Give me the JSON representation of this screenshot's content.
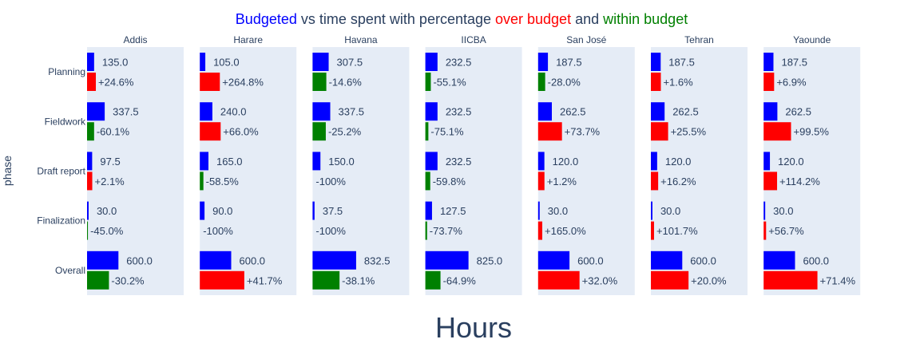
{
  "chart_data": {
    "type": "bar",
    "orientation": "horizontal",
    "title": {
      "parts": [
        {
          "text": "Budgeted",
          "color": "#0000ff"
        },
        {
          "text": " vs time spent with percentage ",
          "color": "#2a3f5f"
        },
        {
          "text": "over budget",
          "color": "#ff0000"
        },
        {
          "text": " and ",
          "color": "#2a3f5f"
        },
        {
          "text": "within budget",
          "color": "#008000"
        }
      ]
    },
    "xlabel": "Hours",
    "ylabel": "phase",
    "categories": [
      "Planning",
      "Fieldwork",
      "Draft report",
      "Finalization",
      "Overall"
    ],
    "colors": {
      "budgeted": "#0000ff",
      "over": "#ff0000",
      "within": "#008000",
      "panel_bg": "#e5ecf6"
    },
    "grid": false,
    "xlim": [
      0,
      1400
    ],
    "facets": [
      {
        "name": "Addis",
        "budget": [
          135,
          337.5,
          97.5,
          30,
          600
        ],
        "spent": [
          168.2,
          134.7,
          99.5,
          16.5,
          418.8
        ],
        "budget_labels": [
          "135.0",
          "337.5",
          "97.5",
          "30.0",
          "600.0"
        ],
        "pct_labels": [
          "+24.6%",
          "-60.1%",
          "+2.1%",
          "-45.0%",
          "-30.2%"
        ]
      },
      {
        "name": "Harare",
        "budget": [
          105,
          240,
          165,
          90,
          600
        ],
        "spent": [
          383.0,
          398.4,
          68.5,
          0,
          850.2
        ],
        "budget_labels": [
          "105.0",
          "240.0",
          "165.0",
          "90.0",
          "600.0"
        ],
        "pct_labels": [
          "+264.8%",
          "+66.0%",
          "-58.5%",
          "-100%",
          "+41.7%"
        ]
      },
      {
        "name": "Havana",
        "budget": [
          307.5,
          337.5,
          150,
          37.5,
          832.5
        ],
        "spent": [
          262.6,
          252.5,
          0,
          0,
          515.3
        ],
        "budget_labels": [
          "307.5",
          "337.5",
          "150.0",
          "37.5",
          "832.5"
        ],
        "pct_labels": [
          "-14.6%",
          "-25.2%",
          "-100%",
          "-100%",
          "-38.1%"
        ]
      },
      {
        "name": "IICBA",
        "budget": [
          232.5,
          232.5,
          232.5,
          127.5,
          825
        ],
        "spent": [
          104.4,
          57.9,
          93.5,
          33.5,
          289.6
        ],
        "budget_labels": [
          "232.5",
          "232.5",
          "232.5",
          "127.5",
          "825.0"
        ],
        "pct_labels": [
          "-55.1%",
          "-75.1%",
          "-59.8%",
          "-73.7%",
          "-64.9%"
        ]
      },
      {
        "name": "San José",
        "budget": [
          187.5,
          262.5,
          120,
          30,
          600
        ],
        "spent": [
          135.0,
          456.0,
          121.4,
          79.5,
          792.0
        ],
        "budget_labels": [
          "187.5",
          "262.5",
          "120.0",
          "30.0",
          "600.0"
        ],
        "pct_labels": [
          "-28.0%",
          "+73.7%",
          "+1.2%",
          "+165.0%",
          "+32.0%"
        ]
      },
      {
        "name": "Tehran",
        "budget": [
          187.5,
          262.5,
          120,
          30,
          600
        ],
        "spent": [
          190.5,
          329.4,
          139.4,
          60.5,
          720.0
        ],
        "budget_labels": [
          "187.5",
          "262.5",
          "120.0",
          "30.0",
          "600.0"
        ],
        "pct_labels": [
          "+1.6%",
          "+25.5%",
          "+16.2%",
          "+101.7%",
          "+20.0%"
        ]
      },
      {
        "name": "Yaounde",
        "budget": [
          187.5,
          262.5,
          120,
          30,
          600
        ],
        "spent": [
          200.4,
          523.7,
          257.0,
          47.0,
          1028.4
        ],
        "budget_labels": [
          "187.5",
          "262.5",
          "120.0",
          "30.0",
          "600.0"
        ],
        "pct_labels": [
          "+6.9%",
          "+99.5%",
          "+114.2%",
          "+56.7%",
          "+71.4%"
        ]
      }
    ]
  }
}
